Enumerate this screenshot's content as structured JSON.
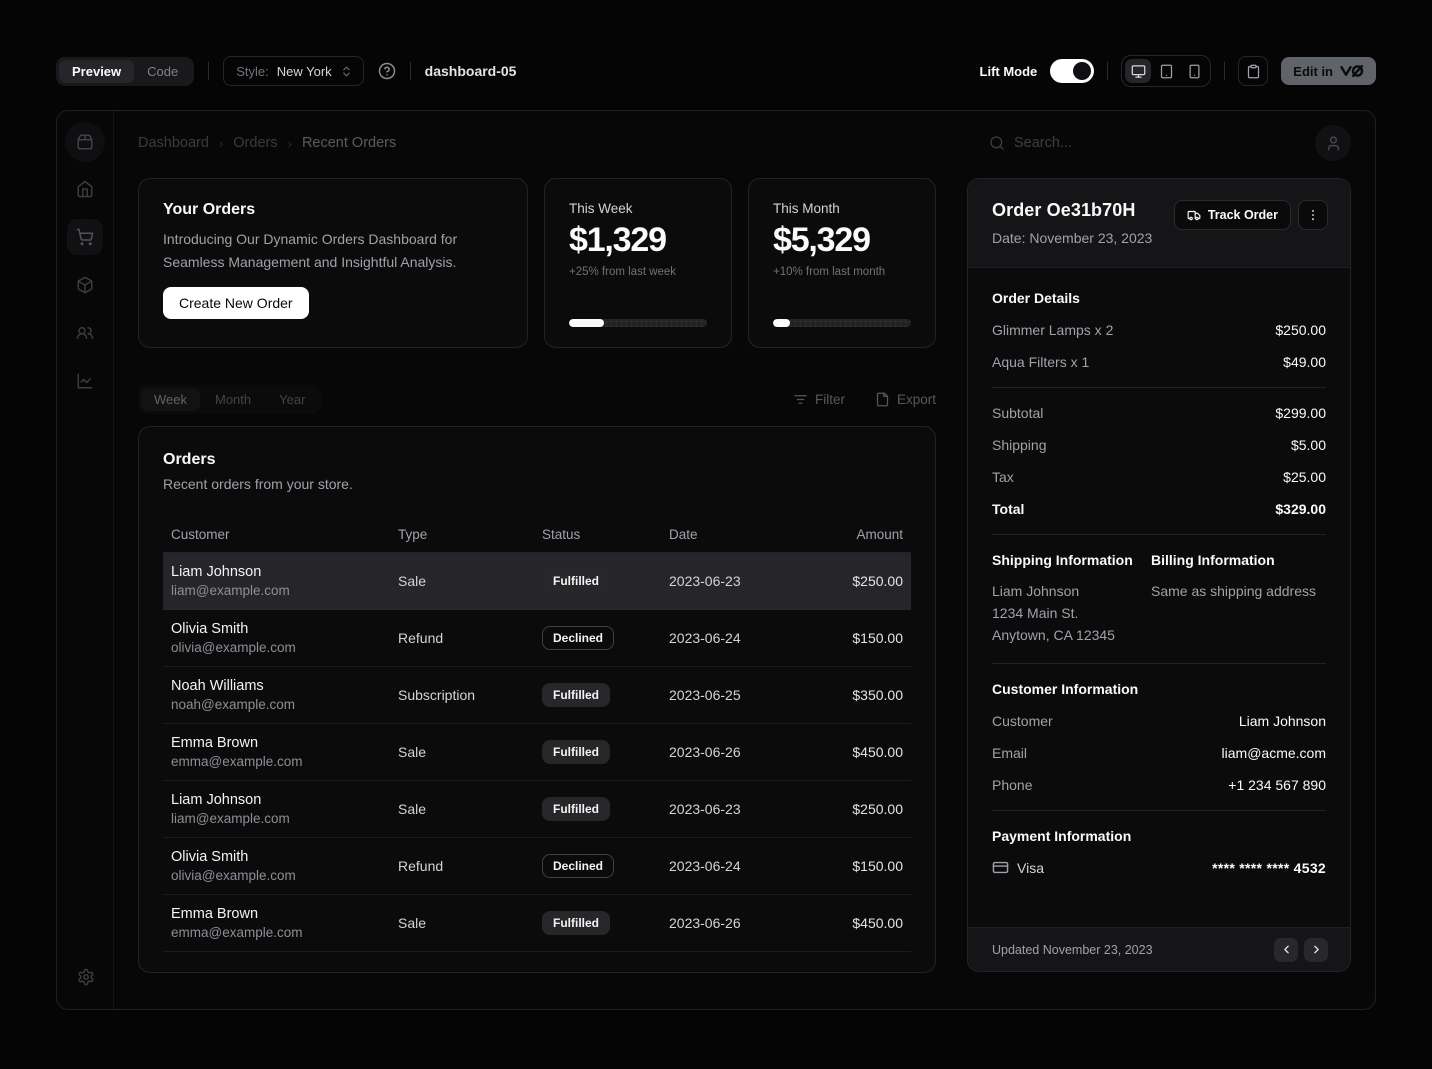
{
  "colors": {
    "accent": "#fafafa",
    "muted_text": "#a1a1aa",
    "selected_row_bg": "#26262a",
    "badge_outline_border": "#3f3f46",
    "progress_fill": "#fafafa",
    "toggle_on": "#ffffff"
  },
  "toolbar": {
    "tabs": {
      "preview": "Preview",
      "code": "Code"
    },
    "style_label": "Style:",
    "style_value": "New York",
    "component_name": "dashboard-05",
    "lift_mode_label": "Lift Mode",
    "edit_button_label": "Edit in"
  },
  "dashboard": {
    "breadcrumb": {
      "items": [
        "Dashboard",
        "Orders"
      ],
      "current": "Recent Orders"
    },
    "search": {
      "placeholder": "Search..."
    },
    "intro_card": {
      "title": "Your Orders",
      "description": "Introducing Our Dynamic Orders Dashboard for Seamless Management and Insightful Analysis.",
      "button_label": "Create New Order"
    },
    "stat_cards": [
      {
        "label": "This Week",
        "value": "$1,329",
        "delta": "+25% from last week",
        "progress_pct": 25
      },
      {
        "label": "This Month",
        "value": "$5,329",
        "delta": "+10% from last month",
        "progress_pct": 12
      }
    ],
    "period_tabs": {
      "items": [
        "Week",
        "Month",
        "Year"
      ],
      "active": "Week"
    },
    "actions": {
      "filter": "Filter",
      "export": "Export"
    },
    "orders_card": {
      "title": "Orders",
      "description": "Recent orders from your store.",
      "columns": [
        "Customer",
        "Type",
        "Status",
        "Date",
        "Amount"
      ],
      "rows": [
        {
          "customer": "Liam Johnson",
          "email": "liam@example.com",
          "type": "Sale",
          "status": "Fulfilled",
          "status_variant": "filled",
          "date": "2023-06-23",
          "amount": "$250.00",
          "selected": true
        },
        {
          "customer": "Olivia Smith",
          "email": "olivia@example.com",
          "type": "Refund",
          "status": "Declined",
          "status_variant": "outline",
          "date": "2023-06-24",
          "amount": "$150.00",
          "selected": false
        },
        {
          "customer": "Noah Williams",
          "email": "noah@example.com",
          "type": "Subscription",
          "status": "Fulfilled",
          "status_variant": "filled",
          "date": "2023-06-25",
          "amount": "$350.00",
          "selected": false
        },
        {
          "customer": "Emma Brown",
          "email": "emma@example.com",
          "type": "Sale",
          "status": "Fulfilled",
          "status_variant": "filled",
          "date": "2023-06-26",
          "amount": "$450.00",
          "selected": false
        },
        {
          "customer": "Liam Johnson",
          "email": "liam@example.com",
          "type": "Sale",
          "status": "Fulfilled",
          "status_variant": "filled",
          "date": "2023-06-23",
          "amount": "$250.00",
          "selected": false
        },
        {
          "customer": "Olivia Smith",
          "email": "olivia@example.com",
          "type": "Refund",
          "status": "Declined",
          "status_variant": "outline",
          "date": "2023-06-24",
          "amount": "$150.00",
          "selected": false
        },
        {
          "customer": "Emma Brown",
          "email": "emma@example.com",
          "type": "Sale",
          "status": "Fulfilled",
          "status_variant": "filled",
          "date": "2023-06-26",
          "amount": "$450.00",
          "selected": false
        }
      ]
    },
    "order_panel": {
      "title": "Order Oe31b70H",
      "date_line": "Date: November 23, 2023",
      "track_button": "Track Order",
      "details": {
        "heading": "Order Details",
        "items": [
          {
            "name": "Glimmer Lamps x 2",
            "price": "$250.00"
          },
          {
            "name": "Aqua Filters x 1",
            "price": "$49.00"
          }
        ],
        "summary": [
          {
            "label": "Subtotal",
            "value": "$299.00"
          },
          {
            "label": "Shipping",
            "value": "$5.00"
          },
          {
            "label": "Tax",
            "value": "$25.00"
          },
          {
            "label": "Total",
            "value": "$329.00"
          }
        ]
      },
      "shipping": {
        "heading": "Shipping Information",
        "lines": [
          "Liam Johnson",
          "1234 Main St.",
          "Anytown, CA 12345"
        ]
      },
      "billing": {
        "heading": "Billing Information",
        "text": "Same as shipping address"
      },
      "customer": {
        "heading": "Customer Information",
        "rows": [
          {
            "label": "Customer",
            "value": "Liam Johnson"
          },
          {
            "label": "Email",
            "value": "liam@acme.com"
          },
          {
            "label": "Phone",
            "value": "+1 234 567 890"
          }
        ]
      },
      "payment": {
        "heading": "Payment Information",
        "method": "Visa",
        "card_number": "**** **** **** 4532"
      },
      "footer": {
        "updated": "Updated November 23, 2023"
      }
    }
  }
}
